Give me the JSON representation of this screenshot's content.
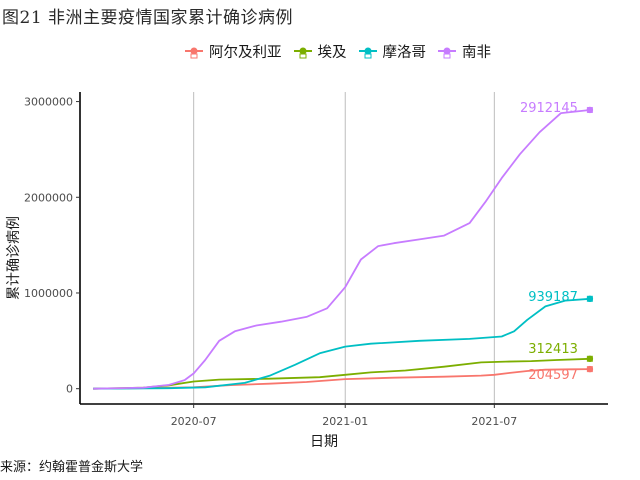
{
  "page": {
    "title": "图21 非洲主要疫情国家累计确诊病例",
    "source": "来源：约翰霍普金斯大学"
  },
  "chart_data": {
    "type": "line",
    "title": "图21 非洲主要疫情国家累计确诊病例",
    "xlabel": "日期",
    "ylabel": "累计确诊病例",
    "x_tick_labels": [
      "2020-07",
      "2021-01",
      "2021-07"
    ],
    "x_ticks": [
      "2020-07-01",
      "2021-01-01",
      "2021-07-01"
    ],
    "xlim": [
      "2020-02-14",
      "2021-11-16"
    ],
    "y_ticks": [
      0,
      1000000,
      2000000,
      3000000
    ],
    "y_tick_labels": [
      "0",
      "1000000",
      "2000000",
      "3000000"
    ],
    "ylim": [
      -160000,
      3100000
    ],
    "grid": "vertical major lines only",
    "legend_position": "top",
    "series": [
      {
        "name": "阿尔及利亚",
        "color": "#F8766D",
        "end_label": "204597",
        "points": [
          [
            "2020-03-01",
            0
          ],
          [
            "2020-05-01",
            6000
          ],
          [
            "2020-07-01",
            15000
          ],
          [
            "2020-08-15",
            38000
          ],
          [
            "2020-10-01",
            52000
          ],
          [
            "2020-11-15",
            70000
          ],
          [
            "2021-01-01",
            100000
          ],
          [
            "2021-03-01",
            115000
          ],
          [
            "2021-05-01",
            125000
          ],
          [
            "2021-06-15",
            137000
          ],
          [
            "2021-07-01",
            145000
          ],
          [
            "2021-07-20",
            165000
          ],
          [
            "2021-08-10",
            185000
          ],
          [
            "2021-09-01",
            198000
          ],
          [
            "2021-10-01",
            203000
          ],
          [
            "2021-10-25",
            204597
          ]
        ]
      },
      {
        "name": "埃及",
        "color": "#7CAE00",
        "end_label": "312413",
        "points": [
          [
            "2020-03-01",
            0
          ],
          [
            "2020-05-01",
            10000
          ],
          [
            "2020-06-01",
            35000
          ],
          [
            "2020-07-01",
            75000
          ],
          [
            "2020-08-01",
            95000
          ],
          [
            "2020-10-01",
            104000
          ],
          [
            "2020-12-01",
            120000
          ],
          [
            "2021-01-01",
            145000
          ],
          [
            "2021-02-01",
            170000
          ],
          [
            "2021-03-15",
            190000
          ],
          [
            "2021-05-01",
            230000
          ],
          [
            "2021-06-15",
            275000
          ],
          [
            "2021-07-15",
            283000
          ],
          [
            "2021-08-15",
            288000
          ],
          [
            "2021-09-15",
            300000
          ],
          [
            "2021-10-25",
            312413
          ]
        ]
      },
      {
        "name": "摩洛哥",
        "color": "#00BFC4",
        "end_label": "939187",
        "points": [
          [
            "2020-03-01",
            0
          ],
          [
            "2020-06-01",
            5000
          ],
          [
            "2020-07-15",
            15000
          ],
          [
            "2020-09-01",
            60000
          ],
          [
            "2020-10-01",
            135000
          ],
          [
            "2020-11-01",
            250000
          ],
          [
            "2020-12-01",
            370000
          ],
          [
            "2021-01-01",
            440000
          ],
          [
            "2021-02-01",
            470000
          ],
          [
            "2021-04-01",
            500000
          ],
          [
            "2021-06-01",
            520000
          ],
          [
            "2021-07-10",
            545000
          ],
          [
            "2021-07-25",
            600000
          ],
          [
            "2021-08-10",
            720000
          ],
          [
            "2021-09-01",
            860000
          ],
          [
            "2021-09-25",
            920000
          ],
          [
            "2021-10-25",
            939187
          ]
        ]
      },
      {
        "name": "南非",
        "color": "#C77CFF",
        "end_label": "2912145",
        "points": [
          [
            "2020-03-01",
            0
          ],
          [
            "2020-05-01",
            10000
          ],
          [
            "2020-06-01",
            40000
          ],
          [
            "2020-06-20",
            90000
          ],
          [
            "2020-07-01",
            160000
          ],
          [
            "2020-07-15",
            300000
          ],
          [
            "2020-08-01",
            500000
          ],
          [
            "2020-08-20",
            600000
          ],
          [
            "2020-09-15",
            660000
          ],
          [
            "2020-10-15",
            700000
          ],
          [
            "2020-11-15",
            750000
          ],
          [
            "2020-12-10",
            840000
          ],
          [
            "2021-01-01",
            1060000
          ],
          [
            "2021-01-20",
            1350000
          ],
          [
            "2021-02-10",
            1490000
          ],
          [
            "2021-03-01",
            1520000
          ],
          [
            "2021-04-01",
            1560000
          ],
          [
            "2021-05-01",
            1600000
          ],
          [
            "2021-06-01",
            1730000
          ],
          [
            "2021-06-20",
            1950000
          ],
          [
            "2021-07-10",
            2200000
          ],
          [
            "2021-08-01",
            2450000
          ],
          [
            "2021-08-25",
            2680000
          ],
          [
            "2021-09-20",
            2880000
          ],
          [
            "2021-10-25",
            2912145
          ]
        ]
      }
    ]
  }
}
